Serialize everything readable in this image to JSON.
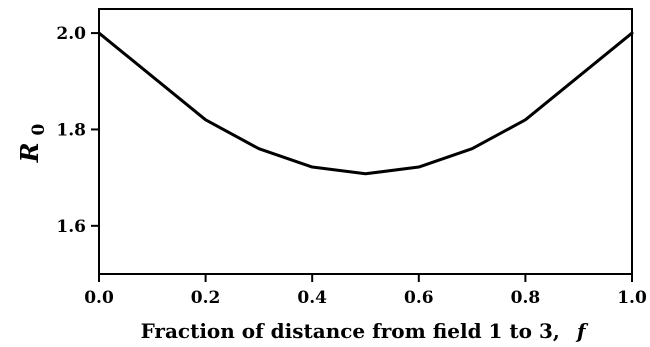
{
  "chart_data": {
    "type": "line",
    "title": "",
    "xlabel": "Fraction of distance from field 1 to 3,",
    "xlabel_var": "f",
    "ylabel": "R",
    "ylabel_sub": "0",
    "xlim": [
      0.0,
      1.0
    ],
    "ylim": [
      1.5,
      2.05
    ],
    "x_ticks": [
      0.0,
      0.2,
      0.4,
      0.6,
      0.8,
      1.0
    ],
    "x_tick_labels": [
      "0.0",
      "0.2",
      "0.4",
      "0.6",
      "0.8",
      "1.0"
    ],
    "y_ticks": [
      1.6,
      1.8,
      2.0
    ],
    "y_tick_labels": [
      "1.6",
      "1.8",
      "2.0"
    ],
    "grid": false,
    "series": [
      {
        "x": [
          0.0,
          0.1,
          0.2,
          0.3,
          0.4,
          0.5,
          0.6,
          0.7,
          0.8,
          0.9,
          1.0
        ],
        "y": [
          2.0,
          1.91,
          1.82,
          1.76,
          1.722,
          1.708,
          1.722,
          1.76,
          1.82,
          1.91,
          2.0
        ],
        "color": "#000000"
      }
    ]
  }
}
